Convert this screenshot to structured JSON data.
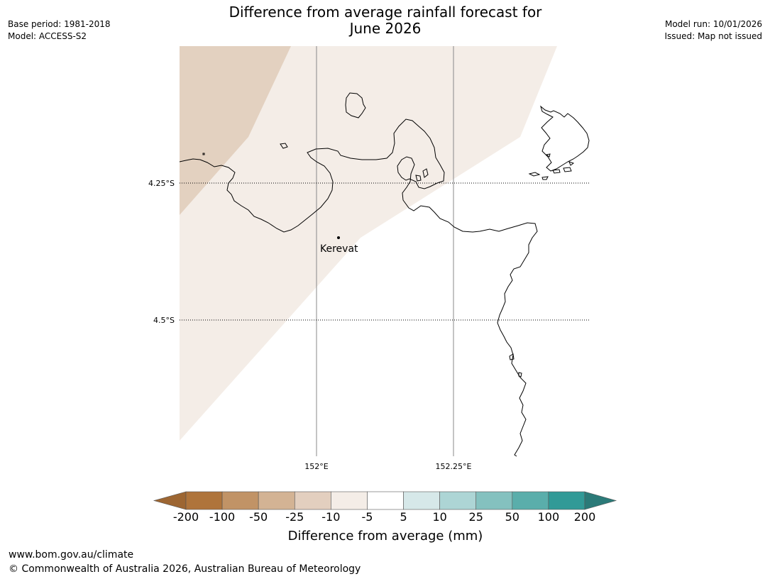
{
  "header": {
    "title_line1": "Difference from average rainfall forecast for",
    "title_line2": "June 2026",
    "base_period": "Base period: 1981-2018",
    "model": "Model: ACCESS-S2",
    "model_run": "Model run: 10/01/2026",
    "issued": "Issued: Map not issued"
  },
  "map": {
    "lat_labels": [
      "4.25°S",
      "4.5°S"
    ],
    "lon_labels": [
      "152°E",
      "152.25°E"
    ],
    "place_label": "Kerevat"
  },
  "colorbar": {
    "title": "Difference from average (mm)",
    "ticks": [
      "-200",
      "-100",
      "-50",
      "-25",
      "-10",
      "-5",
      "5",
      "10",
      "25",
      "50",
      "100",
      "200"
    ],
    "colors": [
      "#9d6632",
      "#af743b",
      "#c19366",
      "#d3b394",
      "#e3cfbf",
      "#f4ede7",
      "#ffffff",
      "#d6e8e9",
      "#add5d5",
      "#84c1bf",
      "#5aaeab",
      "#319a97",
      "#2b7a78"
    ]
  },
  "footer": {
    "url": "www.bom.gov.au/climate",
    "copyright": "© Commonwealth of Australia 2026, Australian Bureau of Meteorology"
  }
}
